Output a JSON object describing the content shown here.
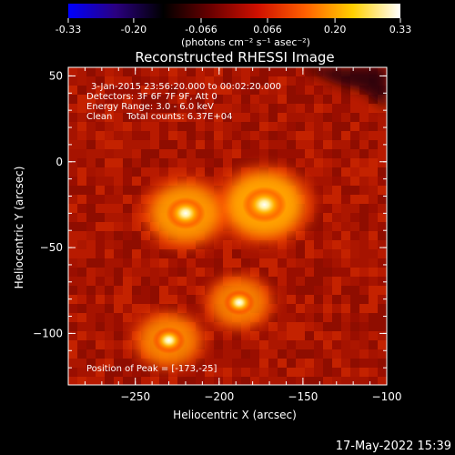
{
  "colorbar": {
    "tick_labels": [
      "-0.33",
      "-0.20",
      "-0.066",
      "0.066",
      "0.20",
      "0.33"
    ],
    "tick_values": [
      -0.33,
      -0.2,
      -0.066,
      0.066,
      0.2,
      0.33
    ],
    "range": [
      -0.33,
      0.33
    ],
    "units_label": "(photons cm⁻² s⁻¹ asec⁻²)",
    "stops": [
      "#0000ff",
      "#2a0080",
      "#000000",
      "#6a0000",
      "#d01000",
      "#ff6000",
      "#ffd000",
      "#ffffff"
    ]
  },
  "chart_data": {
    "type": "heatmap",
    "title": "Reconstructed RHESSI Image",
    "xlabel": "Heliocentric X (arcsec)",
    "ylabel": "Heliocentric Y (arcsec)",
    "xlim": [
      -290,
      -100
    ],
    "ylim": [
      -130,
      55
    ],
    "x_ticks": [
      -250,
      -200,
      -150,
      -100
    ],
    "x_tick_labels": [
      "−250",
      "−200",
      "−150",
      "−100"
    ],
    "y_ticks": [
      50,
      0,
      -50,
      -100
    ],
    "y_tick_labels": [
      "50",
      "0",
      "−50",
      "−100"
    ],
    "sources": [
      {
        "x": -173,
        "y": -25,
        "peak": 1.0
      },
      {
        "x": -220,
        "y": -30,
        "peak": 0.85
      },
      {
        "x": -188,
        "y": -82,
        "peak": 0.6
      },
      {
        "x": -230,
        "y": -104,
        "peak": 0.65
      }
    ],
    "annotations": [
      "3-Jan-2015 23:56:20.000 to 00:02:20.000",
      "Detectors: 3F 6F 7F 9F, Att 0",
      "Energy Range: 3.0 - 6.0 keV",
      "Clean     Total counts: 6.37E+04"
    ],
    "peak_note": "Position of Peak = [-173,-25]"
  },
  "footer": {
    "timestamp": "17-May-2022 15:39"
  }
}
